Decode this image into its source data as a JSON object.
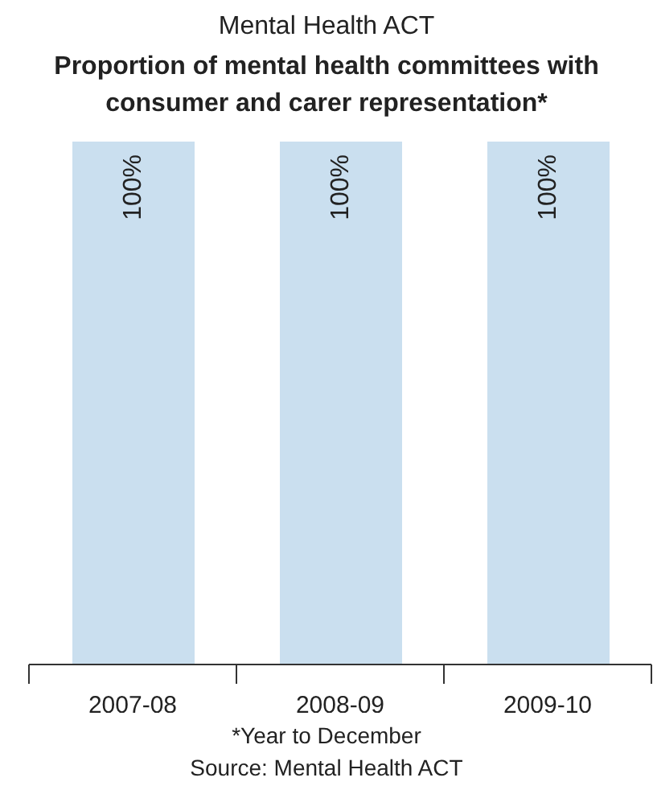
{
  "chart_data": {
    "type": "bar",
    "title": "Mental Health ACT",
    "subtitle": "Proportion of mental health committees with consumer and carer representation*",
    "categories": [
      "2007-08",
      "2008-09",
      "2009-10"
    ],
    "values": [
      100,
      100,
      100
    ],
    "value_labels": [
      "100%",
      "100%",
      "100%"
    ],
    "color": "#cadfef",
    "grid": false,
    "legend": false,
    "annotations": [
      "*Year to December",
      "Source: Mental Health ACT"
    ]
  }
}
